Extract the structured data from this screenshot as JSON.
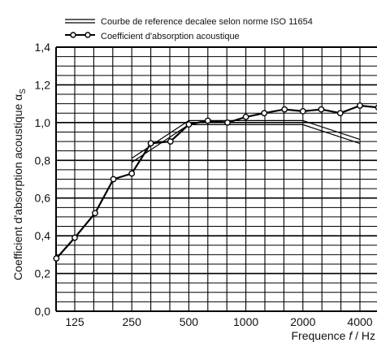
{
  "chart_data": {
    "type": "line",
    "xlabel_prefix": "Frequence ",
    "xlabel_var": "f",
    "xlabel_suffix": " / Hz",
    "ylabel": "Coefficient d'absorption acoustique α",
    "ylabel_sub": "S",
    "x_scale": "log",
    "x_tick_values": [
      125,
      250,
      500,
      1000,
      2000,
      4000
    ],
    "x_tick_labels": [
      "125",
      "250",
      "500",
      "1000",
      "2000",
      "4000"
    ],
    "y_ticks": [
      0.0,
      0.2,
      0.4,
      0.6,
      0.8,
      1.0,
      1.2,
      1.4
    ],
    "y_tick_labels": [
      "0,0",
      "0,2",
      "0,4",
      "0,6",
      "0,8",
      "1,0",
      "1,2",
      "1,4"
    ],
    "ylim": [
      0,
      1.4
    ],
    "grid": true,
    "legend_position": "top",
    "series": [
      {
        "name": "Coefficient d'absorption acoustique",
        "style": "line-with-open-circles",
        "color": "#000000",
        "x": [
          100,
          125,
          160,
          200,
          250,
          315,
          400,
          500,
          630,
          800,
          1000,
          1250,
          1600,
          2000,
          2500,
          3150,
          4000,
          5000
        ],
        "y": [
          0.28,
          0.39,
          0.52,
          0.7,
          0.73,
          0.89,
          0.9,
          0.99,
          1.01,
          1.0,
          1.03,
          1.05,
          1.07,
          1.06,
          1.07,
          1.05,
          1.09,
          1.08
        ]
      },
      {
        "name": "Courbe de reference decalee selon norme ISO 11654",
        "style": "double-line",
        "color": "#000000",
        "x": [
          250,
          500,
          2000,
          4000
        ],
        "y": [
          0.8,
          1.0,
          1.0,
          0.9
        ]
      }
    ]
  }
}
